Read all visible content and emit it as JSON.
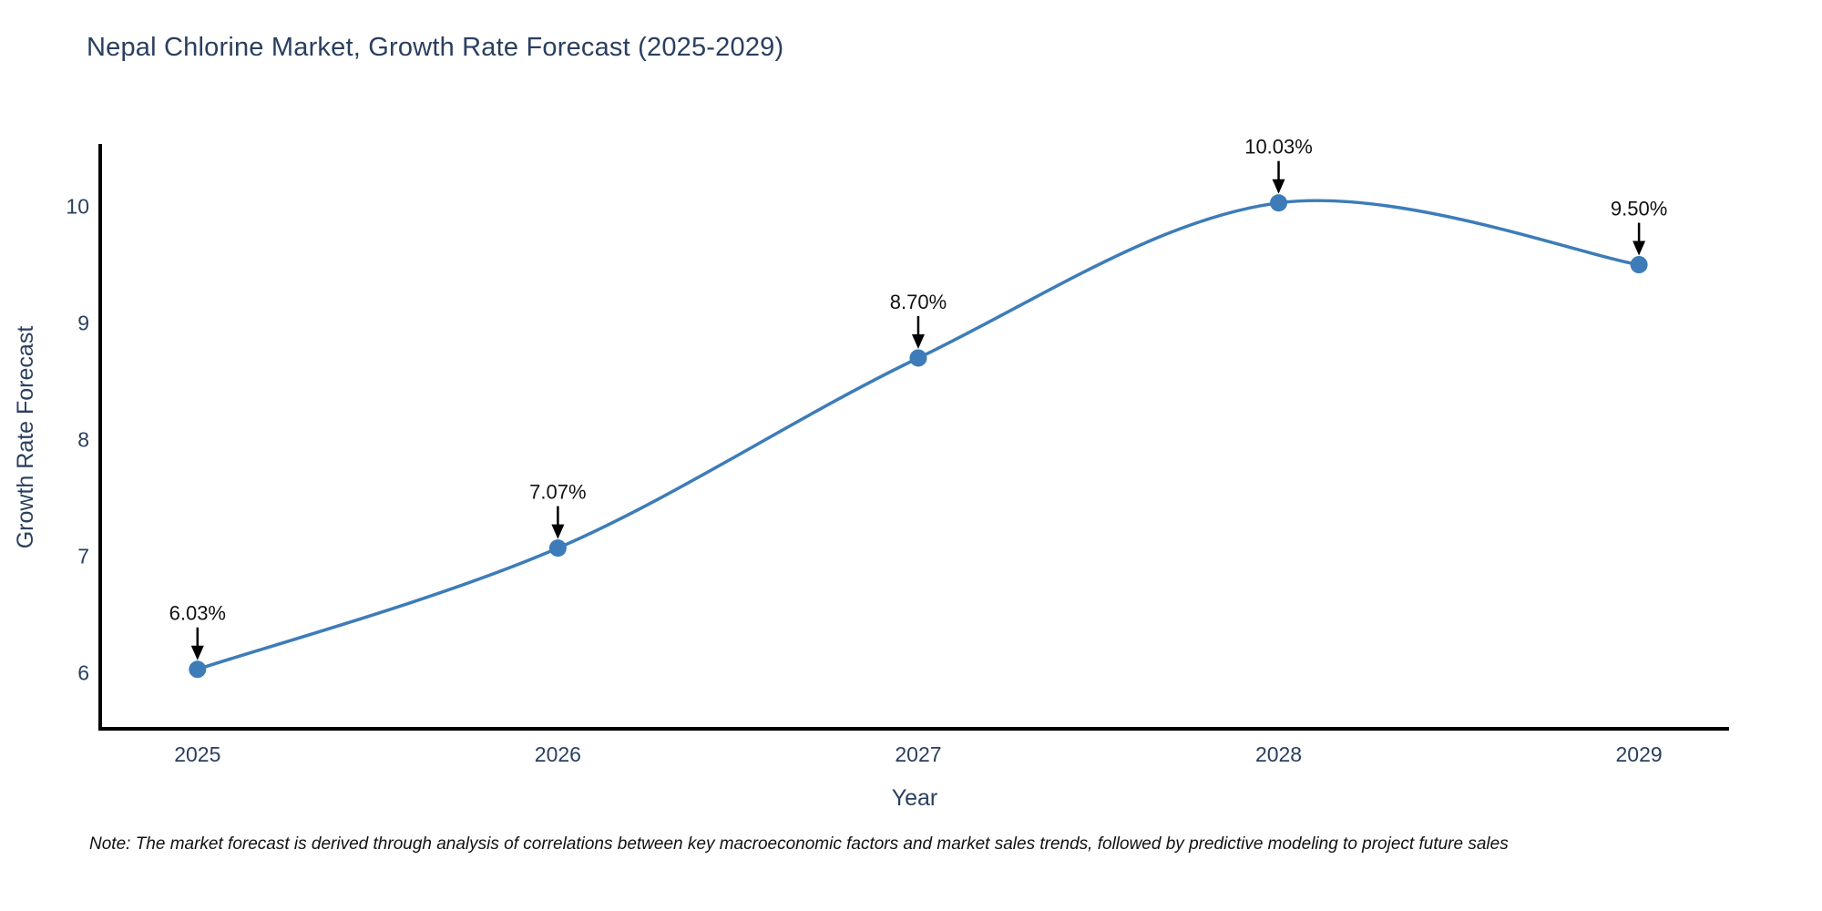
{
  "note": "Note: The market forecast is derived through analysis of correlations between key macroeconomic factors and market sales trends, followed by predictive modeling to project future sales",
  "chart_data": {
    "type": "line",
    "title": "Nepal Chlorine Market, Growth Rate Forecast (2025-2029)",
    "xlabel": "Year",
    "ylabel": "Growth Rate Forecast",
    "x": [
      2025,
      2026,
      2027,
      2028,
      2029
    ],
    "y": [
      6.03,
      7.07,
      8.7,
      10.03,
      9.5
    ],
    "point_labels": [
      "6.03%",
      "7.07%",
      "8.70%",
      "10.03%",
      "9.50%"
    ],
    "xticks": [
      "2025",
      "2026",
      "2027",
      "2028",
      "2029"
    ],
    "yticks": [
      "6",
      "7",
      "8",
      "9",
      "10"
    ],
    "ytick_values": [
      6,
      7,
      8,
      9,
      10
    ],
    "xtick_values": [
      2025,
      2026,
      2027,
      2028,
      2029
    ],
    "xlim": [
      2024.73,
      2029.25
    ],
    "ylim": [
      5.52,
      10.52
    ],
    "line_shape": "spline",
    "grid": false,
    "legend_position": "none",
    "colors": {
      "line": "#3d7cb8",
      "marker": "#3d7cb8",
      "axis_line": "#000000",
      "tick_label": "#2a3f5f",
      "axis_title": "#2a3f5f",
      "chart_title": "#2a3f5f",
      "annotation_text": "#111111",
      "annotation_arrow": "#000000",
      "background": "#ffffff"
    }
  }
}
